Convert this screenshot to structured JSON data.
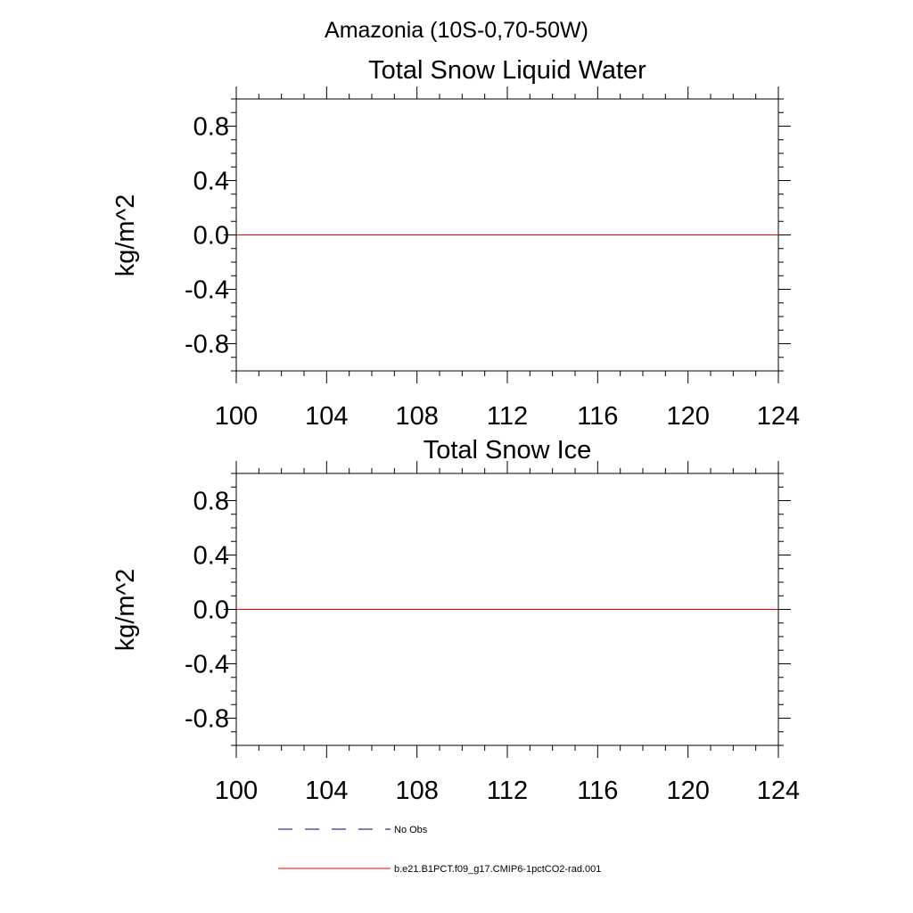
{
  "figure_title": "Amazonia (10S-0,70-50W)",
  "chart_data": [
    {
      "type": "line",
      "title": "Total Snow Liquid Water",
      "xlabel": "",
      "ylabel": "kg/m^2",
      "xlim": [
        100,
        124
      ],
      "ylim": [
        -1.0,
        1.0
      ],
      "x_ticks": [
        "100",
        "104",
        "108",
        "112",
        "116",
        "120",
        "124"
      ],
      "y_ticks": [
        "0.8",
        "0.4",
        "0.0",
        "-0.4",
        "-0.8"
      ],
      "grid": false,
      "series": [
        {
          "name": "b.e21.B1PCT.f09_g17.CMIP6-1pctCO2-rad.001",
          "color": "#ff0000",
          "style": "solid",
          "x": [
            100,
            124
          ],
          "y": [
            0.0,
            0.0
          ]
        }
      ]
    },
    {
      "type": "line",
      "title": "Total Snow Ice",
      "xlabel": "",
      "ylabel": "kg/m^2",
      "xlim": [
        100,
        124
      ],
      "ylim": [
        -1.0,
        1.0
      ],
      "x_ticks": [
        "100",
        "104",
        "108",
        "112",
        "116",
        "120",
        "124"
      ],
      "y_ticks": [
        "0.8",
        "0.4",
        "0.0",
        "-0.4",
        "-0.8"
      ],
      "grid": false,
      "series": [
        {
          "name": "b.e21.B1PCT.f09_g17.CMIP6-1pctCO2-rad.001",
          "color": "#ff0000",
          "style": "solid",
          "x": [
            100,
            124
          ],
          "y": [
            0.0,
            0.0
          ]
        }
      ]
    }
  ],
  "legend": {
    "placement": "bottom",
    "items": [
      {
        "label": "No Obs",
        "style": "dashed",
        "color": "#000080"
      },
      {
        "label": "b.e21.B1PCT.f09_g17.CMIP6-1pctCO2-rad.001",
        "style": "solid",
        "color": "#ff0000"
      }
    ]
  }
}
